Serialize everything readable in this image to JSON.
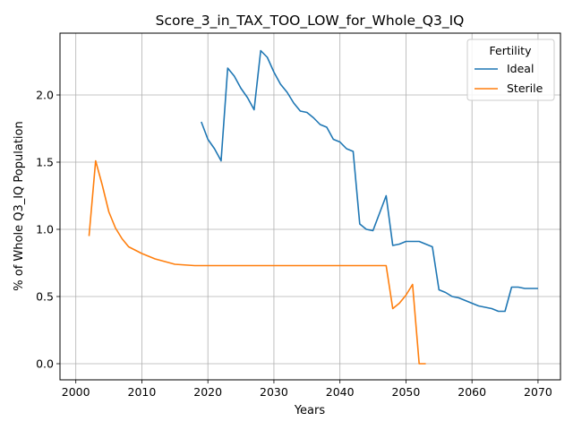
{
  "chart_data": {
    "type": "line",
    "title": "Score_3_in_TAX_TOO_LOW_for_Whole_Q3_IQ",
    "xlabel": "Years",
    "ylabel": "% of Whole Q3_IQ Population",
    "xlim": [
      1997.6,
      2073.4
    ],
    "ylim": [
      -0.12,
      2.46
    ],
    "xticks": [
      2000,
      2010,
      2020,
      2030,
      2040,
      2050,
      2060,
      2070
    ],
    "yticks": [
      0.0,
      0.5,
      1.0,
      1.5,
      2.0
    ],
    "xtick_labels": [
      "2000",
      "2010",
      "2020",
      "2030",
      "2040",
      "2050",
      "2060",
      "2070"
    ],
    "ytick_labels": [
      "0.0",
      "0.5",
      "1.0",
      "1.5",
      "2.0"
    ],
    "grid": true,
    "legend": {
      "title": "Fertility",
      "placement": "top-right"
    },
    "series": [
      {
        "name": "Ideal",
        "color": "#1f77b4",
        "x": [
          2019,
          2020,
          2021,
          2022,
          2023,
          2024,
          2025,
          2026,
          2027,
          2028,
          2029,
          2030,
          2031,
          2032,
          2033,
          2034,
          2035,
          2036,
          2037,
          2038,
          2039,
          2040,
          2041,
          2042,
          2043,
          2044,
          2045,
          2046,
          2047,
          2048,
          2049,
          2050,
          2051,
          2052,
          2053,
          2054,
          2055,
          2056,
          2057,
          2058,
          2059,
          2060,
          2061,
          2062,
          2063,
          2064,
          2065,
          2066,
          2067,
          2068,
          2069,
          2070
        ],
        "y": [
          1.8,
          1.67,
          1.6,
          1.51,
          2.2,
          2.14,
          2.05,
          1.98,
          1.89,
          2.33,
          2.28,
          2.17,
          2.08,
          2.02,
          1.94,
          1.88,
          1.87,
          1.83,
          1.78,
          1.76,
          1.67,
          1.65,
          1.6,
          1.58,
          1.04,
          1.0,
          0.99,
          1.12,
          1.25,
          0.88,
          0.89,
          0.91,
          0.91,
          0.91,
          0.89,
          0.87,
          0.55,
          0.53,
          0.5,
          0.49,
          0.47,
          0.45,
          0.43,
          0.42,
          0.41,
          0.39,
          0.39,
          0.57,
          0.57,
          0.56,
          0.56,
          0.56
        ]
      },
      {
        "name": "Sterile",
        "color": "#ff7f0e",
        "x": [
          2002,
          2003,
          2004,
          2005,
          2006,
          2007,
          2008,
          2010,
          2012,
          2015,
          2018,
          2020,
          2025,
          2030,
          2035,
          2040,
          2045,
          2047,
          2048,
          2049,
          2050,
          2051,
          2052,
          2053
        ],
        "y": [
          0.95,
          1.51,
          1.33,
          1.13,
          1.01,
          0.93,
          0.87,
          0.82,
          0.78,
          0.74,
          0.73,
          0.73,
          0.73,
          0.73,
          0.73,
          0.73,
          0.73,
          0.73,
          0.41,
          0.45,
          0.51,
          0.59,
          0.0,
          0.0
        ]
      }
    ]
  }
}
